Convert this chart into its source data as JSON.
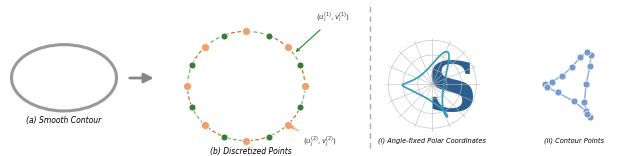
{
  "bg_color": "#ffffff",
  "ellipse_color": "#999999",
  "arrow_color": "#888888",
  "orange_dot_color": "#F0A070",
  "green_dot_color": "#3a7a3a",
  "dashed_orange_color": "#cc5500",
  "dashed_green_color": "#66aa44",
  "label_a": "(a) Smooth Contour",
  "label_b": "(b) Discretized Points",
  "label_i": "(i) Angle-fixed Polar Coordinates",
  "label_ii": "(ii) Contour Points",
  "s_color": "#2a5f8f",
  "polar_color": "#3399bb",
  "contour_dot_color": "#7799cc",
  "contour_line_color": "#8aabdd",
  "dashed_divider_color": "#aaaaaa",
  "annotation_color": "#333333",
  "num_circle_points": 16
}
